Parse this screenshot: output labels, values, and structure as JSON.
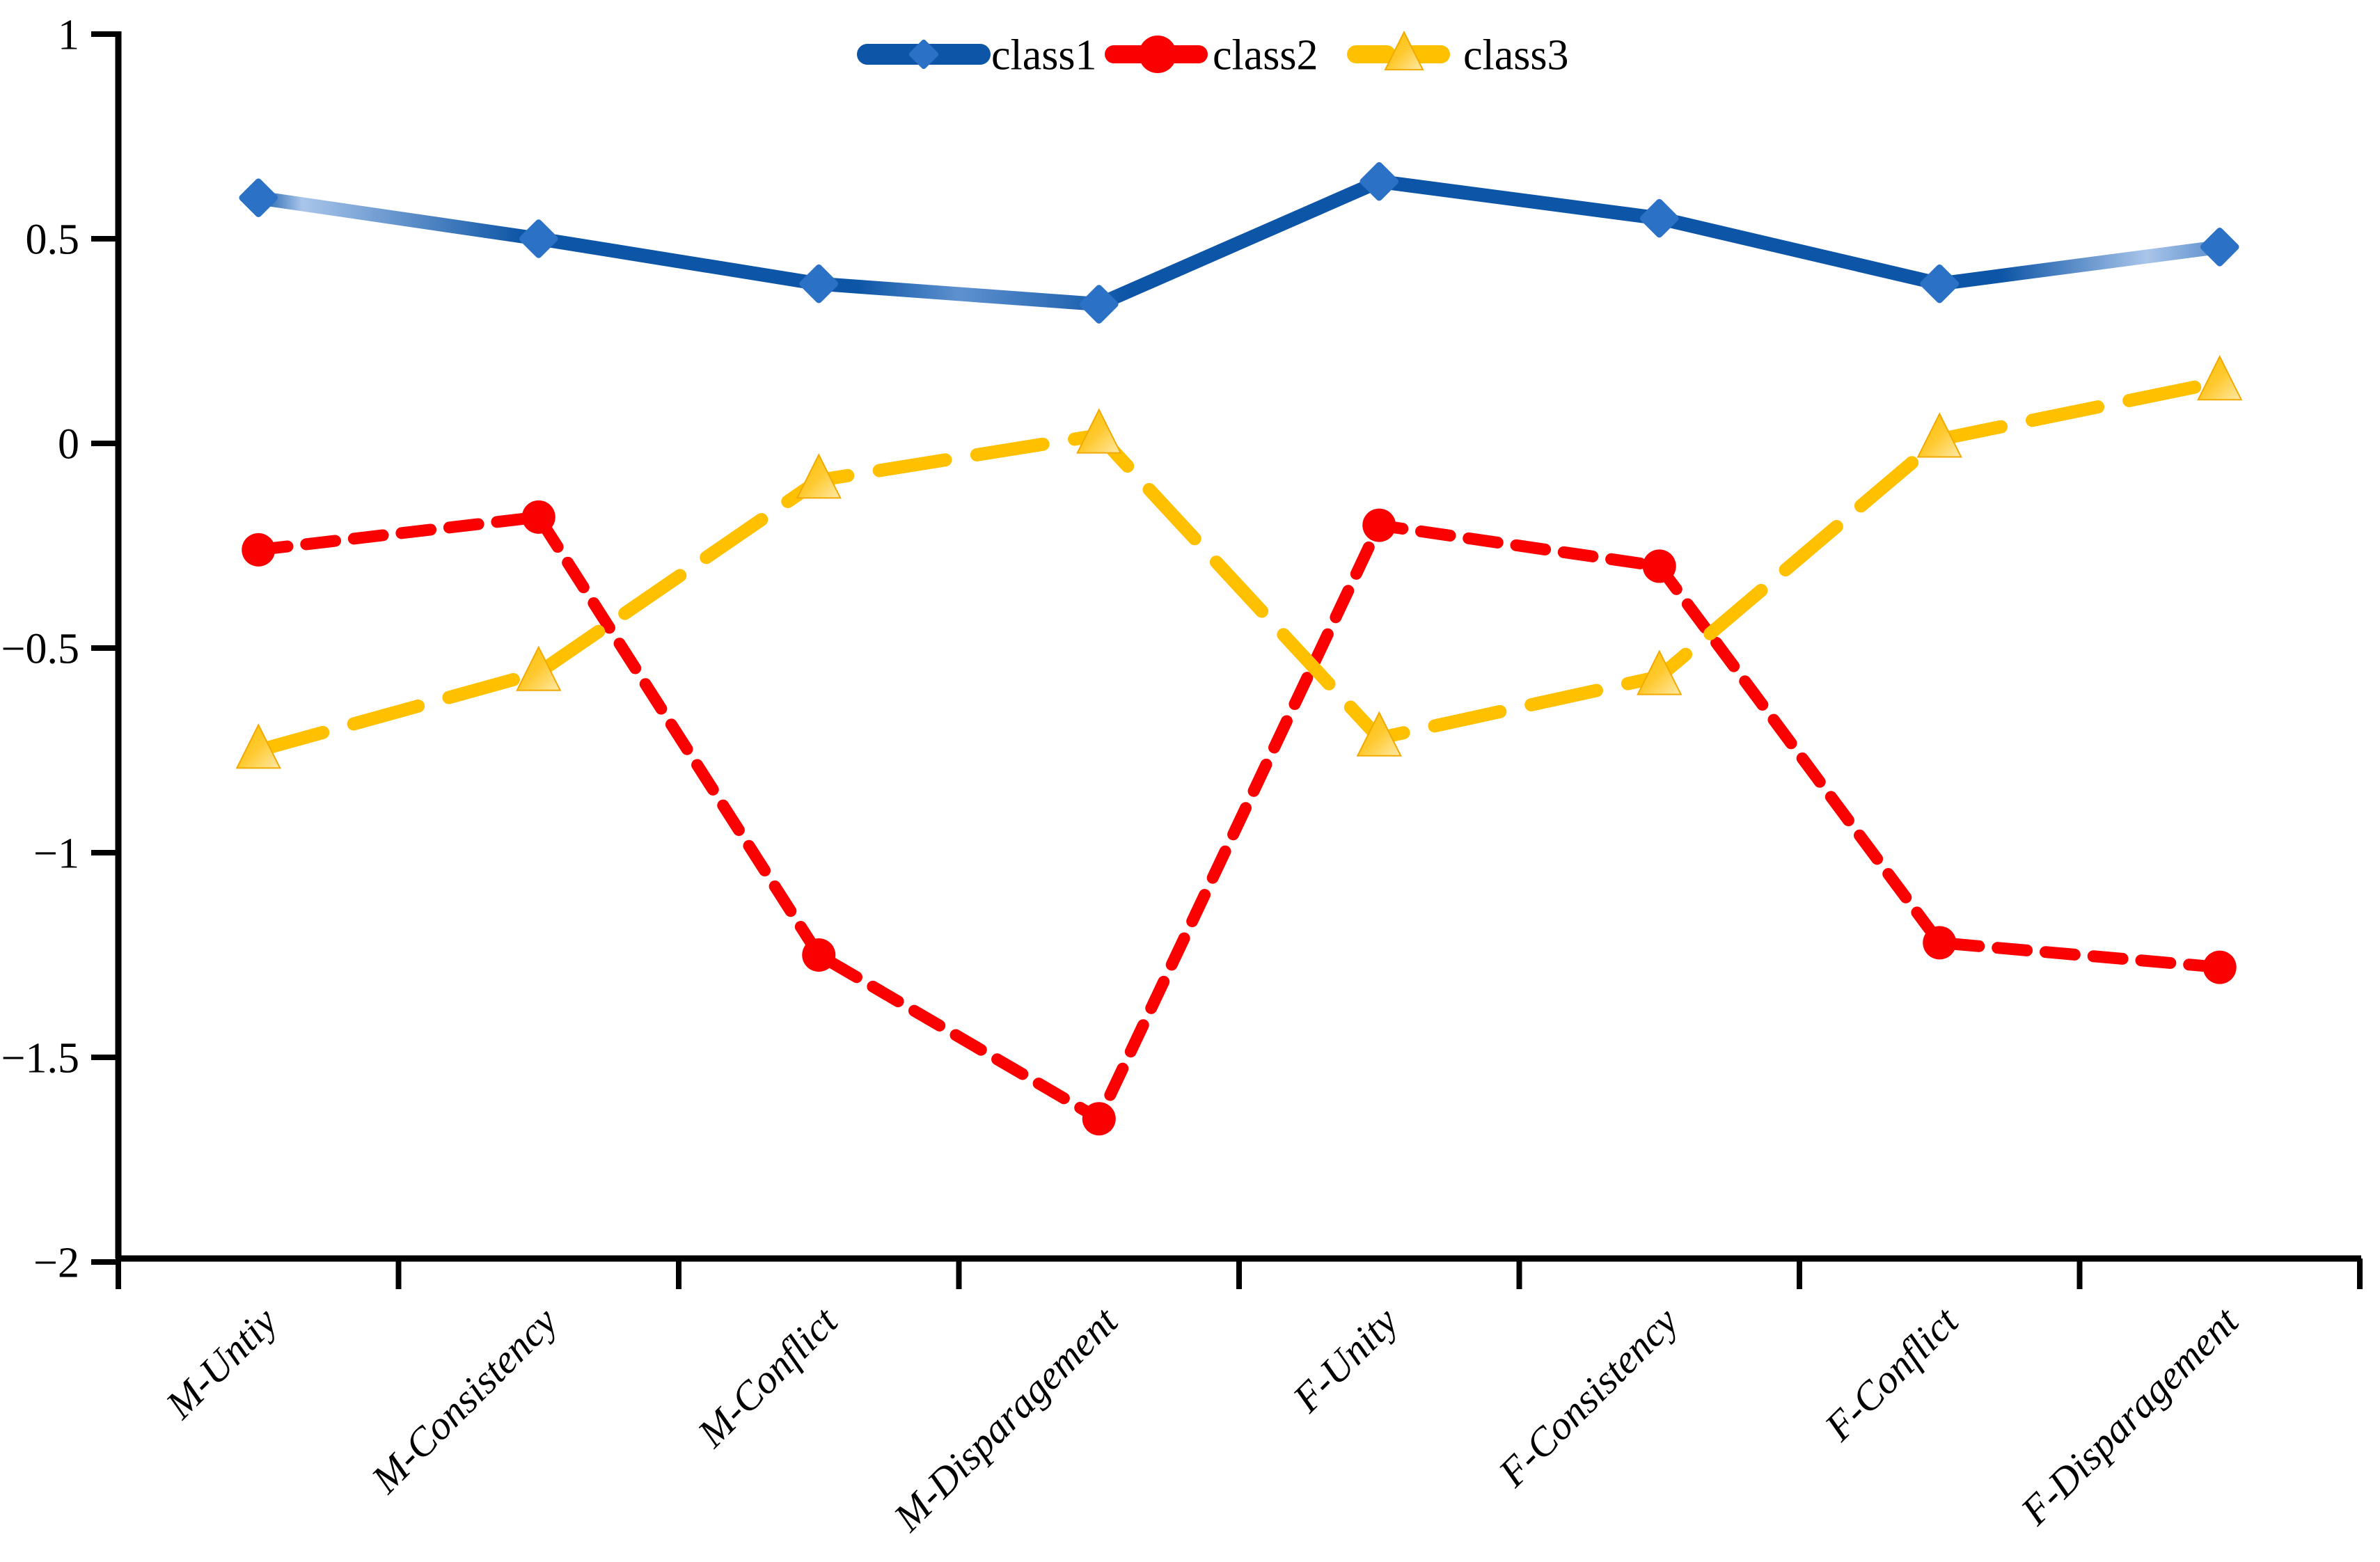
{
  "chart_data": {
    "type": "line",
    "title": "",
    "xlabel": "",
    "ylabel": "",
    "grid": false,
    "legend_position": "top-center",
    "background_color": "#FFFFFF",
    "axis_color": "#000000",
    "ylim": [
      -2,
      1
    ],
    "yticks": [
      {
        "value": 1,
        "label": "1"
      },
      {
        "value": 0.5,
        "label": "0.5"
      },
      {
        "value": 0,
        "label": "0"
      },
      {
        "value": -0.5,
        "label": "−0.5"
      },
      {
        "value": -1,
        "label": "−1"
      },
      {
        "value": -1.5,
        "label": "−1.5"
      },
      {
        "value": -2,
        "label": "−2"
      }
    ],
    "categories": [
      "M-Untiy",
      "M-Consistency",
      "M-Conflict",
      "M-Disparagement",
      "F-Unity",
      "F-Consistency",
      "F-Conflict",
      "F-Disparagement"
    ],
    "series": [
      {
        "name": "class1",
        "marker": "diamond",
        "line_style": "solid",
        "color": "#0D55A6",
        "color_light": "#A9C5EA",
        "marker_color": "#2B72C6",
        "values": [
          0.6,
          0.5,
          0.39,
          0.34,
          0.64,
          0.55,
          0.39,
          0.48
        ]
      },
      {
        "name": "class2",
        "marker": "circle",
        "line_style": "dashed",
        "color": "#FB0000",
        "marker_color": "#FB0000",
        "values": [
          -0.26,
          -0.18,
          -1.25,
          -1.65,
          -0.2,
          -0.3,
          -1.22,
          -1.28
        ]
      },
      {
        "name": "class3",
        "marker": "triangle",
        "line_style": "long-dashed",
        "color": "#FFC000",
        "marker_color": "#FFC000",
        "marker_highlight": "#FFE9A8",
        "values": [
          -0.75,
          -0.56,
          -0.09,
          0.02,
          -0.72,
          -0.57,
          0.01,
          0.15
        ]
      }
    ]
  }
}
